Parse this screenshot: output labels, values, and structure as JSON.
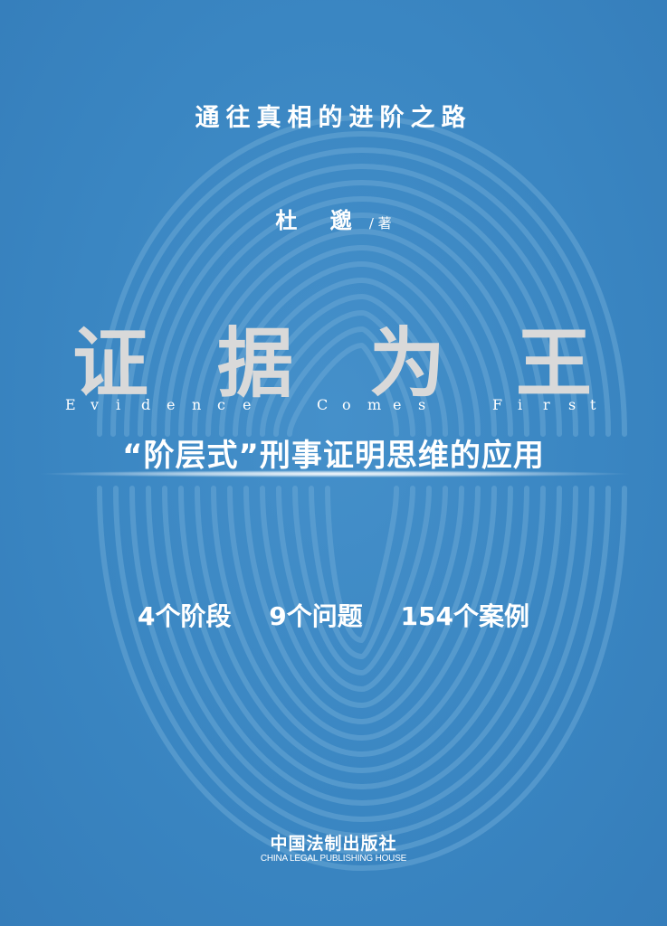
{
  "cover": {
    "tagline": "通往真相的进阶之路",
    "author": {
      "name": "杜 邈",
      "role": "/ 著"
    },
    "title_chars": [
      "证",
      "据",
      "为",
      "王"
    ],
    "english_title_chars": [
      "E",
      "v",
      "i",
      "d",
      "e",
      "n",
      "c",
      "e",
      "C",
      "o",
      "m",
      "e",
      "s",
      "F",
      "i",
      "r",
      "s",
      "t"
    ],
    "subtitle": "“阶层式”刑事证明思维的应用",
    "stats": [
      "4个阶段",
      "9个问题",
      "154个案例"
    ],
    "publisher_cn": "中国法制出版社",
    "publisher_en": "CHINA LEGAL PUBLISHING HOUSE",
    "colors": {
      "background": "#3a86c2",
      "title": "#d9d9d9",
      "text": "#ffffff",
      "fingerprint": "#5c9dd0"
    },
    "decoration": "fingerprint-graphic"
  }
}
